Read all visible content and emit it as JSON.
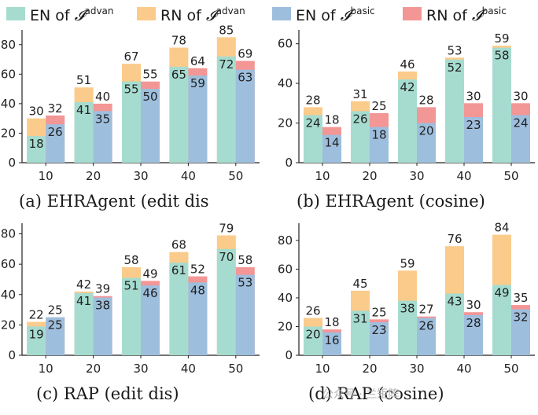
{
  "legend": [
    {
      "prefix": "EN of ",
      "sym": "𝓘",
      "sup": "advan",
      "color": "#a6dccf"
    },
    {
      "prefix": "RN of ",
      "sym": "𝓘",
      "sup": "advan",
      "color": "#fbcb8b"
    },
    {
      "prefix": "EN of ",
      "sym": "𝓘",
      "sup": "basic",
      "color": "#9ebedd"
    },
    {
      "prefix": "RN of ",
      "sym": "𝓘",
      "sup": "basic",
      "color": "#f39696"
    }
  ],
  "colors": {
    "en_advan": "#a6dccf",
    "rn_advan": "#fbcb8b",
    "en_basic": "#9ebedd",
    "rn_basic": "#f39696"
  },
  "watermark": "公众号 · 兰矩阵",
  "chart_data": [
    {
      "type": "bar",
      "caption": "(a) EHRAgent (edit dis",
      "categories": [
        "10",
        "20",
        "30",
        "40",
        "50"
      ],
      "ylim": [
        0,
        90
      ],
      "yticks": [
        0,
        20,
        40,
        60,
        80
      ],
      "series": [
        {
          "name": "EN of 𝓘advan",
          "values": [
            18,
            41,
            55,
            65,
            72
          ]
        },
        {
          "name": "RN of 𝓘advan",
          "values": [
            30,
            51,
            67,
            78,
            85
          ]
        },
        {
          "name": "EN of 𝓘basic",
          "values": [
            26,
            35,
            50,
            59,
            63
          ]
        },
        {
          "name": "RN of 𝓘basic",
          "values": [
            32,
            40,
            55,
            64,
            69
          ]
        }
      ]
    },
    {
      "type": "bar",
      "caption": "(b) EHRAgent (cosine)",
      "categories": [
        "10",
        "20",
        "30",
        "40",
        "50"
      ],
      "ylim": [
        0,
        67
      ],
      "yticks": [
        0,
        20,
        40,
        60
      ],
      "series": [
        {
          "name": "EN of 𝓘advan",
          "values": [
            24,
            26,
            42,
            52,
            58
          ]
        },
        {
          "name": "RN of 𝓘advan",
          "values": [
            28,
            31,
            46,
            53,
            59
          ]
        },
        {
          "name": "EN of 𝓘basic",
          "values": [
            14,
            18,
            20,
            23,
            24
          ]
        },
        {
          "name": "RN of 𝓘basic",
          "values": [
            18,
            25,
            28,
            30,
            30
          ]
        }
      ]
    },
    {
      "type": "bar",
      "caption": "(c) RAP (edit dis)",
      "categories": [
        "10",
        "20",
        "30",
        "40",
        "50"
      ],
      "ylim": [
        0,
        87
      ],
      "yticks": [
        0,
        20,
        40,
        60,
        80
      ],
      "series": [
        {
          "name": "EN of 𝓘advan",
          "values": [
            19,
            41,
            51,
            61,
            70
          ]
        },
        {
          "name": "RN of 𝓘advan",
          "values": [
            22,
            42,
            58,
            68,
            79
          ]
        },
        {
          "name": "EN of 𝓘basic",
          "values": [
            25,
            38,
            46,
            48,
            53
          ]
        },
        {
          "name": "RN of 𝓘basic",
          "values": [
            25,
            39,
            49,
            52,
            58
          ]
        }
      ]
    },
    {
      "type": "bar",
      "caption": "(d) RAP (cosine)",
      "categories": [
        "10",
        "20",
        "30",
        "40",
        "50"
      ],
      "ylim": [
        0,
        92
      ],
      "yticks": [
        0,
        20,
        40,
        60,
        80
      ],
      "series": [
        {
          "name": "EN of 𝓘advan",
          "values": [
            20,
            31,
            38,
            43,
            49
          ]
        },
        {
          "name": "RN of 𝓘advan",
          "values": [
            26,
            45,
            59,
            76,
            84
          ]
        },
        {
          "name": "EN of 𝓘basic",
          "values": [
            16,
            23,
            26,
            28,
            32
          ]
        },
        {
          "name": "RN of 𝓘basic",
          "values": [
            18,
            25,
            27,
            30,
            35
          ]
        }
      ]
    }
  ]
}
